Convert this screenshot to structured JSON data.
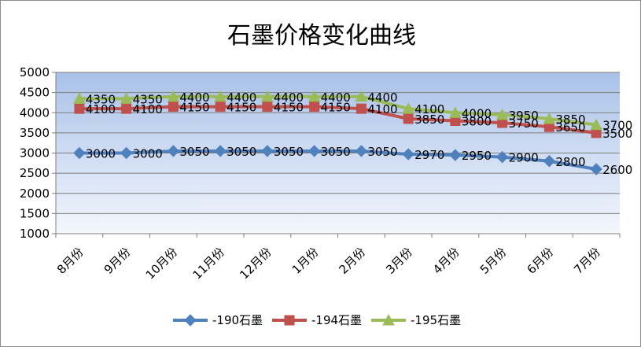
{
  "chart_data": {
    "type": "line",
    "title": "石墨价格变化曲线",
    "categories": [
      "8月份",
      "9月份",
      "10月份",
      "11月份",
      "12月份",
      "1月份",
      "2月份",
      "3月份",
      "4月份",
      "5月份",
      "6月份",
      "7月份"
    ],
    "ylim": [
      1000,
      5000
    ],
    "yticks": [
      "1000",
      "1500",
      "2000",
      "2500",
      "3000",
      "3500",
      "4000",
      "4500",
      "5000"
    ],
    "grid": true,
    "legend_position": "bottom",
    "series": [
      {
        "name": "-190石墨",
        "color": "#4f81bd",
        "marker": "diamond",
        "values": [
          3000,
          3000,
          3050,
          3050,
          3050,
          3050,
          3050,
          2970,
          2950,
          2900,
          2800,
          2600
        ],
        "labels": [
          "3000",
          "3000",
          "3050",
          "3050",
          "3050",
          "3050",
          "3050",
          "2970",
          "2950",
          "2900",
          "2800",
          "2600"
        ]
      },
      {
        "name": "-194石墨",
        "color": "#c0504d",
        "marker": "square",
        "values": [
          4100,
          4100,
          4150,
          4150,
          4150,
          4150,
          4100,
          3850,
          3800,
          3750,
          3650,
          3500
        ],
        "labels": [
          "4100",
          "4100",
          "4150",
          "4150",
          "4150",
          "4150",
          "4100",
          "3850",
          "3800",
          "3750",
          "3650",
          "3500"
        ]
      },
      {
        "name": "-195石墨",
        "color": "#9bbb59",
        "marker": "triangle",
        "values": [
          4350,
          4350,
          4400,
          4400,
          4400,
          4400,
          4400,
          4100,
          4000,
          3950,
          3850,
          3700
        ],
        "labels": [
          "4350",
          "4350",
          "4400",
          "4400",
          "4400",
          "4400",
          "4400",
          "4100",
          "4000",
          "3950",
          "3850",
          "3700"
        ]
      }
    ]
  }
}
